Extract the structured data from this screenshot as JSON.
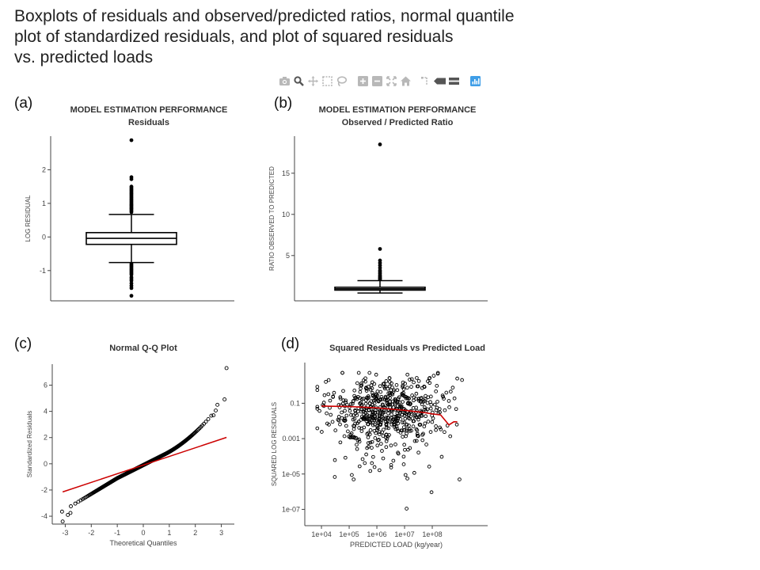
{
  "page": {
    "title_lines": [
      "Boxplots of residuals and observed/predicted ratios, normal quantile",
      "plot of standardized residuals, and plot of squared residuals",
      "vs. predicted loads"
    ]
  },
  "toolbar": {
    "icons": [
      "camera-icon",
      "zoom-icon",
      "pan-icon",
      "box-select-icon",
      "lasso-select-icon",
      "zoom-in-icon",
      "zoom-out-icon",
      "autoscale-icon",
      "reset-axes-icon",
      "spike-lines-icon",
      "hover-closest-icon",
      "hover-compare-icon",
      "plotly-logo-icon"
    ],
    "color": "#b8b8b8",
    "logo_color": "#3f9ee7"
  },
  "panels": {
    "a": "(a)",
    "b": "(b)",
    "c": "(c)",
    "d": "(d)"
  },
  "chart_data": [
    {
      "id": "a",
      "type": "boxplot",
      "title": "MODEL ESTIMATION PERFORMANCE",
      "subtitle": "Residuals",
      "ylabel": "LOG RESIDUAL",
      "ylim": [
        -1.9,
        3.0
      ],
      "yticks": [
        -1,
        0,
        1,
        2
      ],
      "box": {
        "whisker_low": -0.76,
        "q1": -0.22,
        "median": -0.04,
        "q3": 0.13,
        "whisker_high": 0.67
      },
      "outliers": [
        2.88,
        1.78,
        1.72,
        1.5,
        1.46,
        1.42,
        1.38,
        1.34,
        1.3,
        1.26,
        1.22,
        1.18,
        1.14,
        1.1,
        1.06,
        1.02,
        0.98,
        0.95,
        0.92,
        0.88,
        0.85,
        0.82,
        0.78,
        0.74,
        -0.8,
        -0.84,
        -0.88,
        -0.92,
        -0.96,
        -1.0,
        -1.04,
        -1.08,
        -1.12,
        -1.2,
        -1.25,
        -1.3,
        -1.38,
        -1.45,
        -1.52,
        -1.75
      ]
    },
    {
      "id": "b",
      "type": "boxplot",
      "title": "MODEL ESTIMATION PERFORMANCE",
      "subtitle": "Observed / Predicted Ratio",
      "ylabel": "RATIO OBSERVED TO PREDICTED",
      "ylim": [
        -0.5,
        19.5
      ],
      "yticks": [
        5,
        10,
        15
      ],
      "box": {
        "whisker_low": 0.45,
        "q1": 0.8,
        "median": 0.96,
        "q3": 1.15,
        "whisker_high": 1.95
      },
      "outliers": [
        18.5,
        5.8,
        4.4,
        4.1,
        3.8,
        3.5,
        3.2,
        3.0,
        2.8,
        2.6,
        2.45,
        2.3,
        2.2,
        2.1
      ]
    },
    {
      "id": "c",
      "type": "scatter",
      "title": "Normal Q-Q Plot",
      "xlabel": "Theoretical Quantiles",
      "ylabel": "Standardized Residuals",
      "xlim": [
        -3.5,
        3.5
      ],
      "ylim": [
        -4.6,
        7.6
      ],
      "xticks": [
        -3,
        -2,
        -1,
        0,
        1,
        2,
        3
      ],
      "yticks": [
        -4,
        -2,
        0,
        2,
        4,
        6
      ],
      "n_points": 560,
      "reference_line": {
        "slope": 0.66,
        "intercept": -0.1,
        "from": -3.1,
        "to": 3.2
      },
      "extremes": [
        [
          3.2,
          7.3
        ],
        [
          2.85,
          4.5
        ],
        [
          2.7,
          3.7
        ],
        [
          -3.1,
          -4.4
        ],
        [
          -2.9,
          -3.9
        ],
        [
          -2.8,
          -3.75
        ]
      ]
    },
    {
      "id": "d",
      "type": "scatter",
      "title": "Squared Residuals vs Predicted Load",
      "xlabel": "PREDICTED LOAD (kg/year)",
      "ylabel": "SQUARED LOG RESIDUALS",
      "xscale": "log",
      "yscale": "log",
      "xlim": [
        2500,
        10000000000.0
      ],
      "ylim": [
        1.2e-08,
        20
      ],
      "xticks": [
        "1e+04",
        "1e+05",
        "1e+06",
        "1e+07",
        "1e+08"
      ],
      "yticks": [
        "0.1",
        "0.001",
        "1e-05",
        "1e-07"
      ],
      "n_points": 620,
      "smooth": [
        [
          10000.0,
          0.07
        ],
        [
          100000.0,
          0.065
        ],
        [
          1000000.0,
          0.055
        ],
        [
          10000000.0,
          0.04
        ],
        [
          50000000.0,
          0.03
        ],
        [
          100000000.0,
          0.025
        ],
        [
          200000000.0,
          0.022
        ],
        [
          400000000.0,
          0.006
        ],
        [
          600000000.0,
          0.009
        ],
        [
          800000000.0,
          0.009
        ]
      ],
      "line_color": "#cc0000"
    }
  ]
}
